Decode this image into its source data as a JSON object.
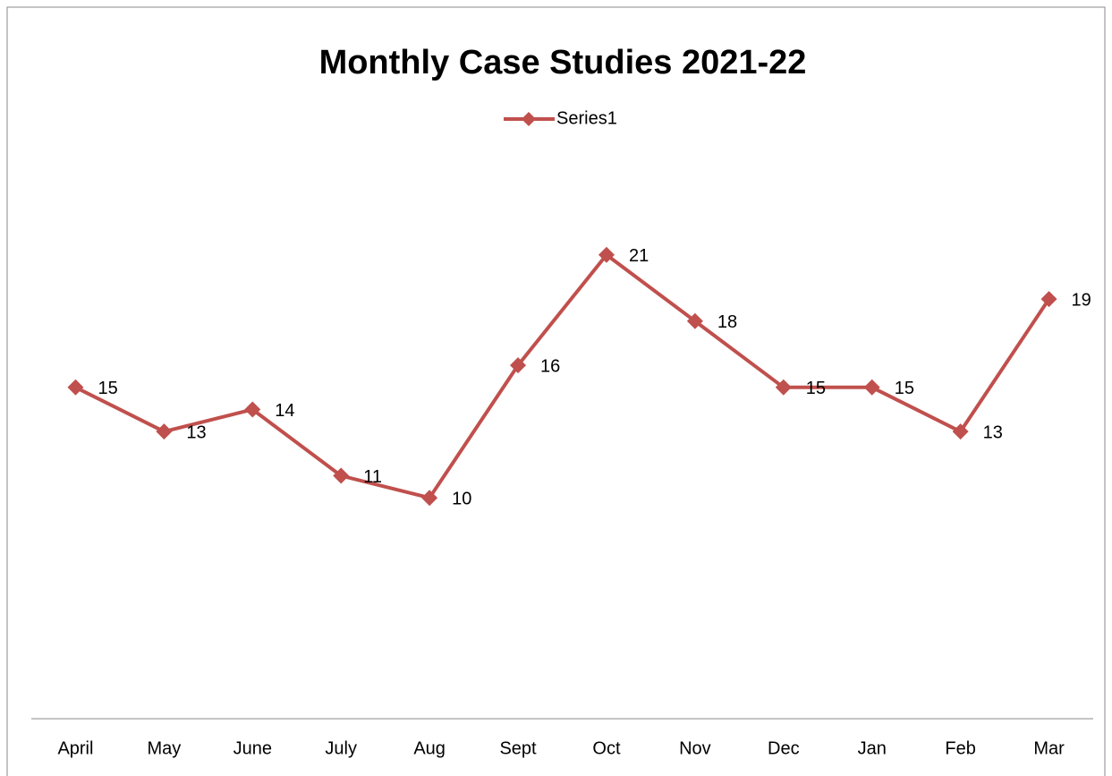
{
  "chart_data": {
    "type": "line",
    "title": "Monthly Case Studies 2021-22",
    "categories": [
      "April",
      "May",
      "June",
      "July",
      "Aug",
      "Sept",
      "Oct",
      "Nov",
      "Dec",
      "Jan",
      "Feb",
      "Mar"
    ],
    "series": [
      {
        "name": "Series1",
        "color": "#c0504d",
        "values": [
          15,
          13,
          14,
          11,
          10,
          16,
          21,
          18,
          15,
          15,
          13,
          19
        ]
      }
    ],
    "ylim": [
      0,
      25
    ],
    "grid": false,
    "legend": "top",
    "data_labels": true
  }
}
